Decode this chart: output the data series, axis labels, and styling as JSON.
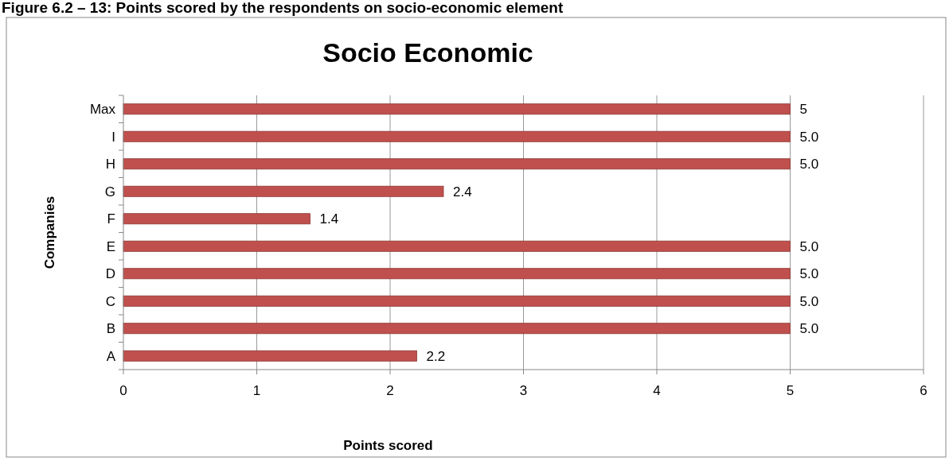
{
  "chart_data": {
    "type": "bar",
    "orientation": "horizontal",
    "title": "Socio Economic",
    "xlabel": "Points scored",
    "ylabel": "Companies",
    "annotations": [
      "Figure 6.2 – 13: Points scored by the respondents on socio-economic element"
    ],
    "categories": [
      "Max",
      "I",
      "H",
      "G",
      "F",
      "E",
      "D",
      "C",
      "B",
      "A"
    ],
    "values": [
      5,
      5.0,
      5.0,
      2.4,
      1.4,
      5.0,
      5.0,
      5.0,
      5.0,
      2.2
    ],
    "value_labels": [
      "5",
      "5.0",
      "5.0",
      "2.4",
      "1.4",
      "5.0",
      "5.0",
      "5.0",
      "5.0",
      "2.2"
    ],
    "color": "#c0504d",
    "xlim": [
      0,
      6
    ],
    "xticks": [
      0,
      1,
      2,
      3,
      4,
      5,
      6
    ],
    "grid": "x"
  }
}
